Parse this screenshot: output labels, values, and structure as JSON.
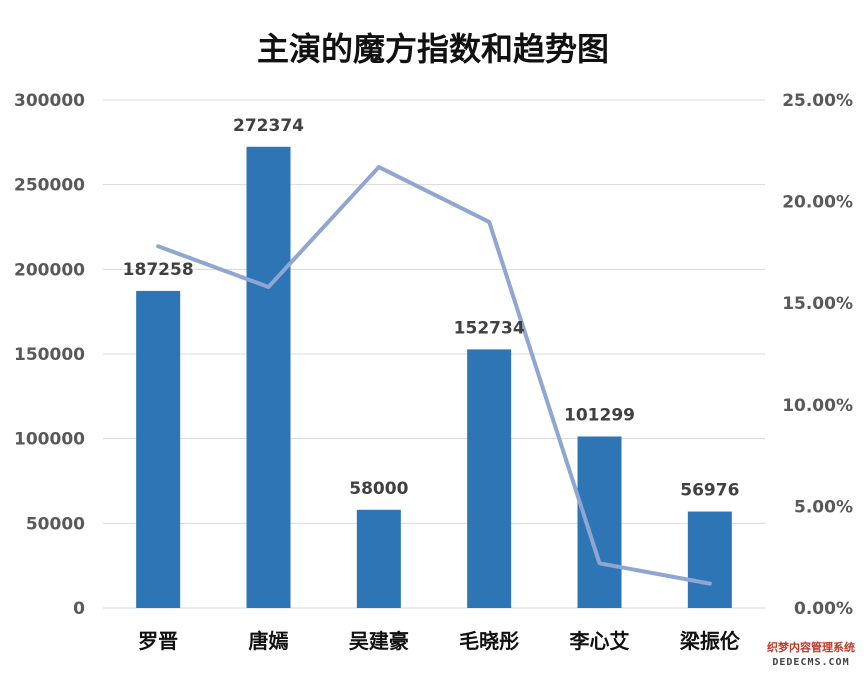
{
  "chart_data": {
    "type": "bar",
    "title": "主演的魔方指数和趋势图",
    "categories": [
      "罗晋",
      "唐嫣",
      "吴建豪",
      "毛晓彤",
      "李心艾",
      "梁振伦"
    ],
    "series": [
      {
        "type": "bar",
        "axis": "left",
        "values": [
          187258,
          272374,
          58000,
          152734,
          101299,
          56976
        ],
        "data_labels": [
          "187258",
          "272374",
          "58000",
          "152734",
          "101299",
          "56976"
        ],
        "color": "#2E75B6"
      },
      {
        "type": "line",
        "axis": "right",
        "values": [
          0.178,
          0.158,
          0.217,
          0.19,
          0.022,
          0.012
        ],
        "color": "#8FA5D2"
      }
    ],
    "y_left": {
      "min": 0,
      "max": 300000,
      "ticks": [
        0,
        50000,
        100000,
        150000,
        200000,
        250000,
        300000
      ],
      "tick_labels": [
        "0",
        "50000",
        "100000",
        "150000",
        "200000",
        "250000",
        "300000"
      ]
    },
    "y_right": {
      "min": 0,
      "max": 0.25,
      "ticks": [
        0,
        0.05,
        0.1,
        0.15,
        0.2,
        0.25
      ],
      "tick_labels": [
        "0.00%",
        "5.00%",
        "10.00%",
        "15.00%",
        "20.00%",
        "25.00%"
      ]
    },
    "grid": true,
    "legend": "none",
    "gridline_color": "#D9D9D9"
  },
  "watermark": {
    "line1": "织梦内容管理系统",
    "line2": "DEDECMS.COM"
  }
}
